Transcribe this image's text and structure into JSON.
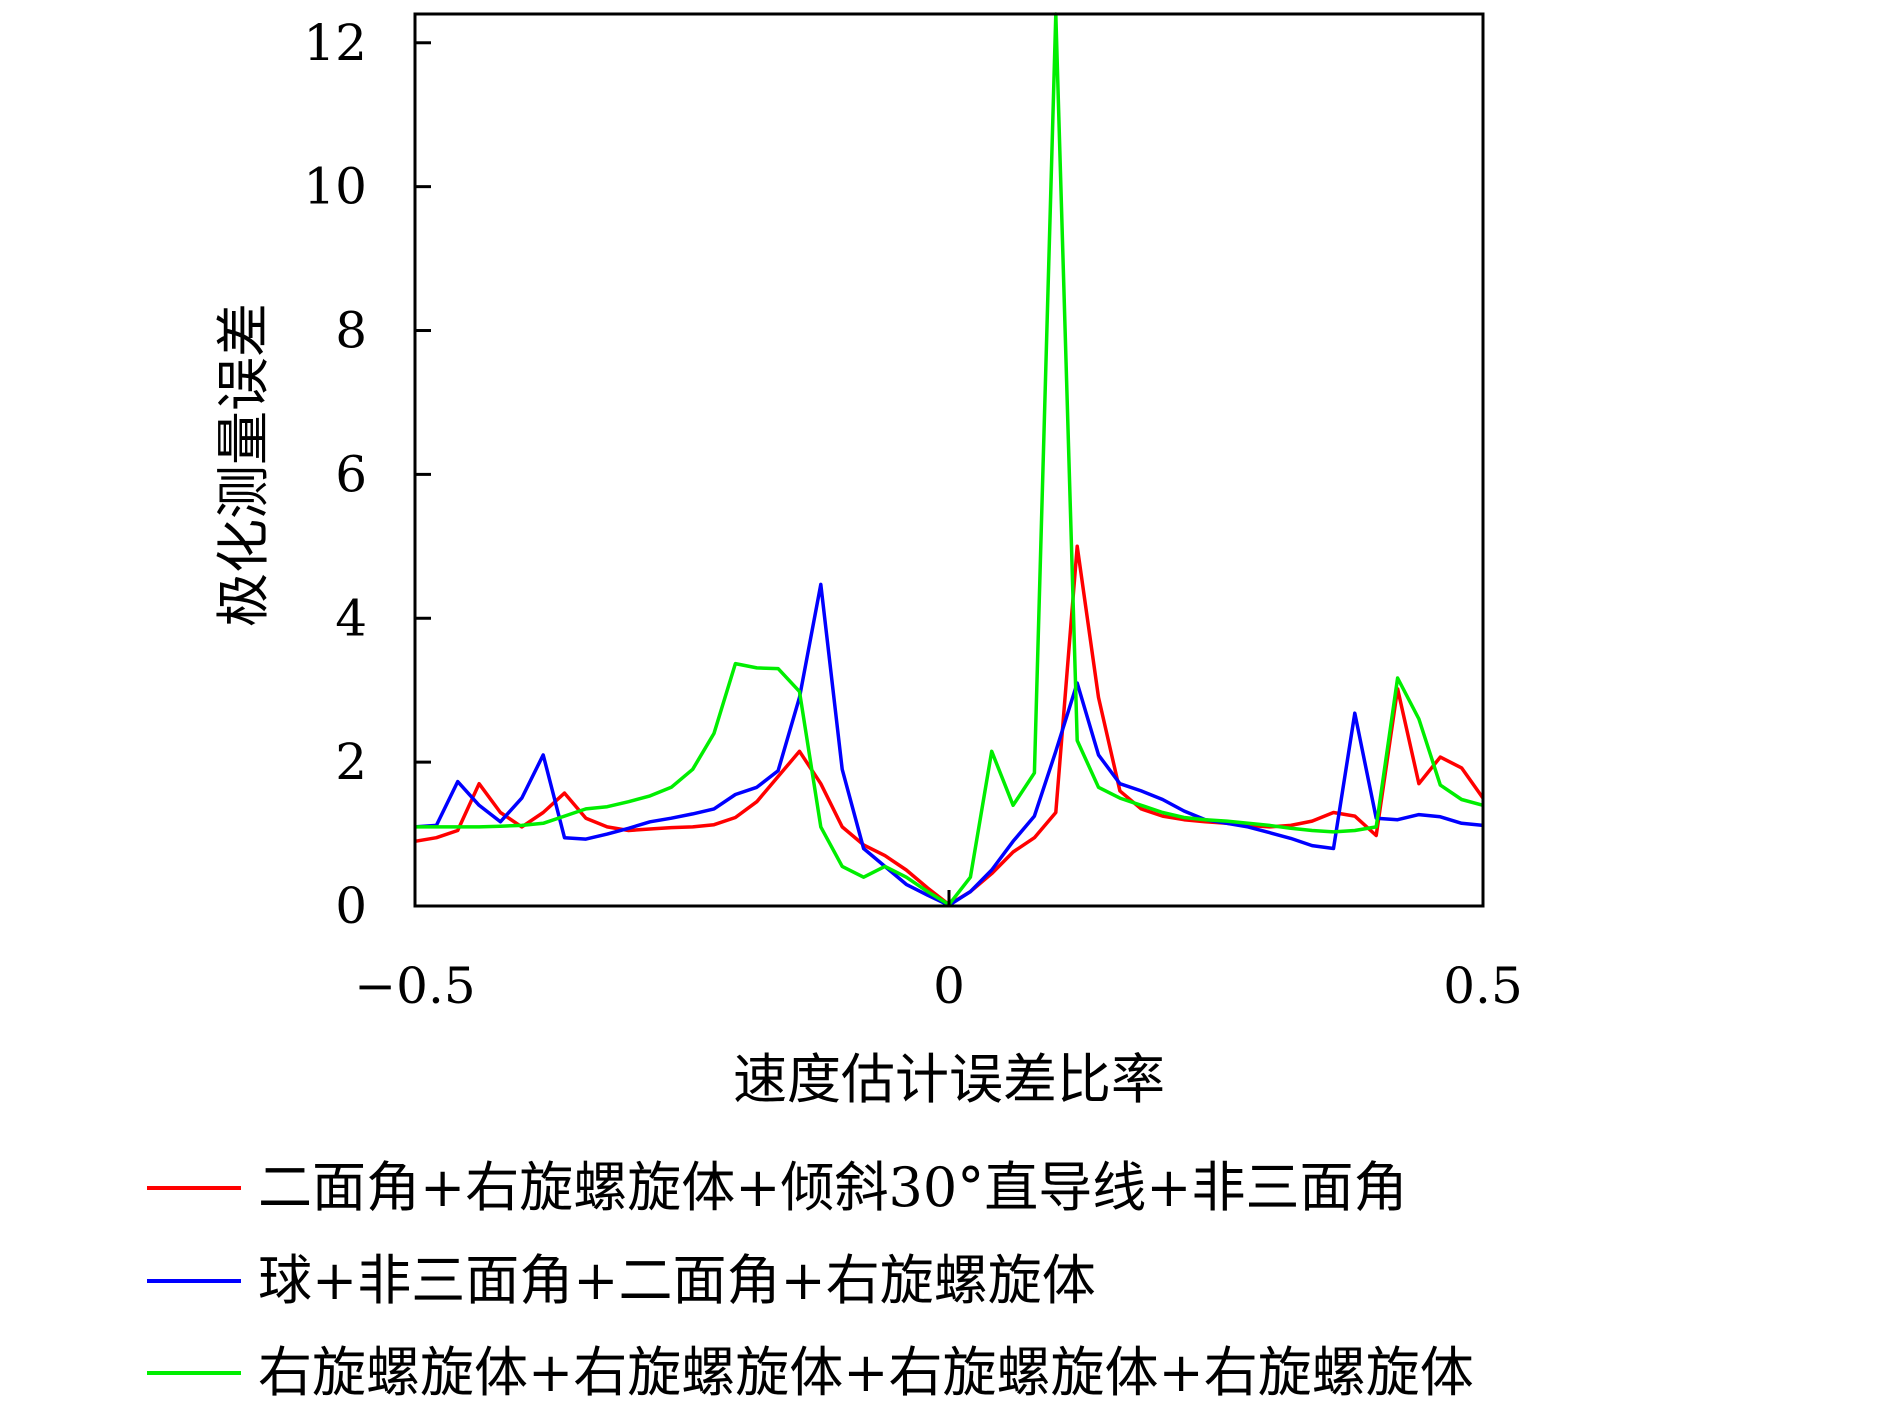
{
  "chart_data": {
    "type": "line",
    "title": "",
    "xlabel": "速度估计误差比率",
    "ylabel": "极化测量误差",
    "xlim": [
      -0.5,
      0.5
    ],
    "ylim": [
      0,
      12.4
    ],
    "xticks": [
      -0.5,
      0,
      0.5
    ],
    "xtick_labels": [
      "−0.5",
      "0",
      "0.5"
    ],
    "yticks": [
      0,
      2,
      4,
      6,
      8,
      10,
      12
    ],
    "ytick_labels": [
      "0",
      "2",
      "4",
      "6",
      "8",
      "10",
      "12"
    ],
    "grid": false,
    "legend_position": "bottom",
    "series": [
      {
        "name": "二面角+右旋螺旋体+倾斜30°直导线+非三面角",
        "color": "#ff0000",
        "x": [
          -0.5,
          -0.48,
          -0.46,
          -0.44,
          -0.42,
          -0.4,
          -0.38,
          -0.36,
          -0.34,
          -0.32,
          -0.3,
          -0.28,
          -0.26,
          -0.24,
          -0.22,
          -0.2,
          -0.18,
          -0.16,
          -0.14,
          -0.12,
          -0.1,
          -0.08,
          -0.06,
          -0.04,
          -0.02,
          0,
          0.02,
          0.04,
          0.06,
          0.08,
          0.1,
          0.12,
          0.14,
          0.16,
          0.18,
          0.2,
          0.22,
          0.24,
          0.26,
          0.28,
          0.3,
          0.32,
          0.34,
          0.36,
          0.38,
          0.4,
          0.42,
          0.44,
          0.46,
          0.48,
          0.5
        ],
        "y": [
          0.9,
          0.95,
          1.05,
          1.7,
          1.3,
          1.1,
          1.3,
          1.57,
          1.22,
          1.1,
          1.05,
          1.07,
          1.09,
          1.1,
          1.13,
          1.23,
          1.45,
          1.8,
          2.15,
          1.7,
          1.1,
          0.85,
          0.7,
          0.5,
          0.25,
          0.02,
          0.2,
          0.45,
          0.75,
          0.95,
          1.3,
          5.0,
          2.9,
          1.6,
          1.35,
          1.25,
          1.2,
          1.17,
          1.15,
          1.12,
          1.1,
          1.12,
          1.18,
          1.3,
          1.25,
          0.98,
          3.02,
          1.7,
          2.07,
          1.92,
          1.5
        ]
      },
      {
        "name": "球+非三面角+二面角+右旋螺旋体",
        "color": "#0000ff",
        "x": [
          -0.5,
          -0.48,
          -0.46,
          -0.44,
          -0.42,
          -0.4,
          -0.38,
          -0.36,
          -0.34,
          -0.32,
          -0.3,
          -0.28,
          -0.26,
          -0.24,
          -0.22,
          -0.2,
          -0.18,
          -0.16,
          -0.14,
          -0.12,
          -0.1,
          -0.08,
          -0.06,
          -0.04,
          -0.02,
          0,
          0.02,
          0.04,
          0.06,
          0.08,
          0.1,
          0.12,
          0.14,
          0.16,
          0.18,
          0.2,
          0.22,
          0.24,
          0.26,
          0.28,
          0.3,
          0.32,
          0.34,
          0.36,
          0.38,
          0.4,
          0.42,
          0.44,
          0.46,
          0.48,
          0.5
        ],
        "y": [
          1.1,
          1.12,
          1.73,
          1.4,
          1.17,
          1.5,
          2.1,
          0.95,
          0.93,
          1.0,
          1.08,
          1.17,
          1.22,
          1.28,
          1.35,
          1.55,
          1.65,
          1.88,
          2.9,
          4.47,
          1.9,
          0.8,
          0.55,
          0.3,
          0.15,
          0.01,
          0.2,
          0.5,
          0.9,
          1.25,
          2.15,
          3.1,
          2.1,
          1.7,
          1.6,
          1.48,
          1.32,
          1.2,
          1.15,
          1.1,
          1.02,
          0.94,
          0.84,
          0.8,
          2.68,
          1.22,
          1.2,
          1.27,
          1.24,
          1.15,
          1.12
        ]
      },
      {
        "name": "右旋螺旋体+右旋螺旋体+右旋螺旋体+右旋螺旋体",
        "color": "#00ee00",
        "x": [
          -0.5,
          -0.48,
          -0.46,
          -0.44,
          -0.42,
          -0.4,
          -0.38,
          -0.36,
          -0.34,
          -0.32,
          -0.3,
          -0.28,
          -0.26,
          -0.24,
          -0.22,
          -0.2,
          -0.18,
          -0.16,
          -0.14,
          -0.12,
          -0.1,
          -0.08,
          -0.06,
          -0.04,
          -0.02,
          0,
          0.02,
          0.04,
          0.06,
          0.08,
          0.1,
          0.12,
          0.14,
          0.16,
          0.18,
          0.2,
          0.22,
          0.24,
          0.26,
          0.28,
          0.3,
          0.32,
          0.34,
          0.36,
          0.38,
          0.4,
          0.42,
          0.44,
          0.46,
          0.48,
          0.5
        ],
        "y": [
          1.1,
          1.1,
          1.1,
          1.1,
          1.11,
          1.12,
          1.15,
          1.25,
          1.35,
          1.38,
          1.45,
          1.53,
          1.65,
          1.9,
          2.4,
          3.37,
          3.31,
          3.3,
          2.98,
          1.1,
          0.55,
          0.4,
          0.55,
          0.4,
          0.2,
          0.02,
          0.4,
          2.15,
          1.4,
          1.85,
          12.4,
          2.3,
          1.65,
          1.5,
          1.4,
          1.3,
          1.23,
          1.2,
          1.18,
          1.15,
          1.12,
          1.08,
          1.05,
          1.03,
          1.05,
          1.1,
          3.17,
          2.6,
          1.68,
          1.48,
          1.4
        ]
      }
    ]
  }
}
